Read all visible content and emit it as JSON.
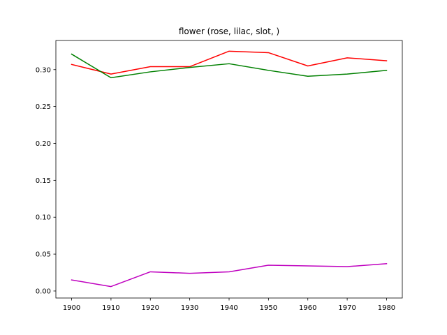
{
  "chart_data": {
    "type": "line",
    "title": "flower (rose, lilac, slot, )",
    "xlabel": "",
    "ylabel": "",
    "x": [
      1900,
      1910,
      1920,
      1930,
      1940,
      1950,
      1960,
      1970,
      1980
    ],
    "xticks": [
      "1900",
      "1910",
      "1920",
      "1930",
      "1940",
      "1950",
      "1960",
      "1970",
      "1980"
    ],
    "yticks": [
      "0.00",
      "0.05",
      "0.10",
      "0.15",
      "0.20",
      "0.25",
      "0.30"
    ],
    "xlim": [
      1896,
      1984
    ],
    "ylim": [
      -0.0095,
      0.3395
    ],
    "grid": false,
    "legend": "none",
    "series": [
      {
        "color": "#ff0000",
        "values": [
          0.307,
          0.294,
          0.304,
          0.304,
          0.325,
          0.323,
          0.305,
          0.316,
          0.312
        ]
      },
      {
        "color": "#008000",
        "values": [
          0.321,
          0.289,
          0.297,
          0.303,
          0.308,
          0.299,
          0.291,
          0.294,
          0.299
        ]
      },
      {
        "color": "#bf00bf",
        "values": [
          0.015,
          0.006,
          0.026,
          0.024,
          0.026,
          0.035,
          0.034,
          0.033,
          0.037
        ]
      }
    ]
  }
}
